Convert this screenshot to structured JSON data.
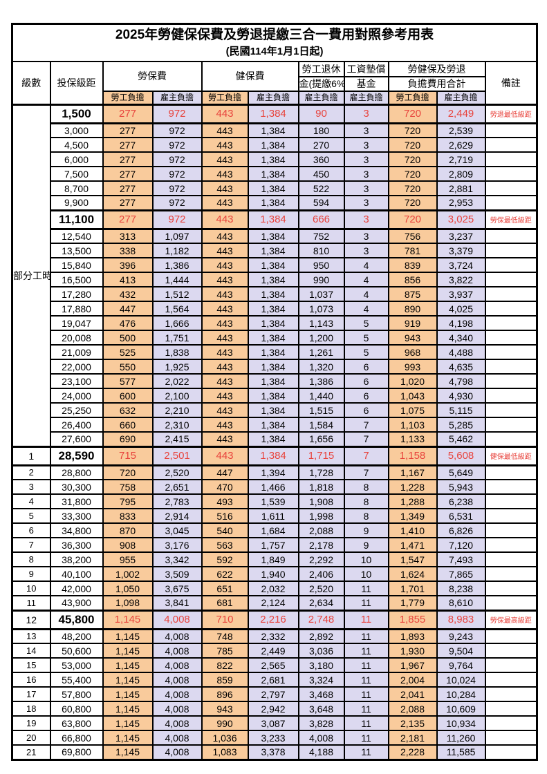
{
  "title": {
    "line1": "2025年勞健保保費及勞退提繳三合一費用對照參考用表",
    "line2": "(民國114年1月1日起)"
  },
  "header": {
    "level": "級數",
    "salary": "投保級距",
    "labor": "勞保費",
    "health": "健保費",
    "pension_l1": "勞工退休",
    "pension_l2": "金(提繳6%)",
    "fund_l1": "工資墊償",
    "fund_l2": "基金",
    "total_l1": "勞健保及勞退",
    "total_l2": "負擔費用合計",
    "remark": "備註",
    "employee": "勞工負擔",
    "employer": "雇主負擔"
  },
  "part_time": {
    "label": "部分工時",
    "row_count": 23
  },
  "colors": {
    "employee_bg": "#f9cb9c",
    "employer_bg": "#dcd9f0",
    "highlight_red": "#e8433c"
  },
  "rows": [
    {
      "level": "",
      "salary": "1,500",
      "labor_emp": "277",
      "labor_er": "972",
      "health_emp": "443",
      "health_er": "1,384",
      "pension": "90",
      "fund": "3",
      "total_emp": "720",
      "total_er": "2,449",
      "remark": "勞退最低級距",
      "highlight": true
    },
    {
      "level": "",
      "salary": "3,000",
      "labor_emp": "277",
      "labor_er": "972",
      "health_emp": "443",
      "health_er": "1,384",
      "pension": "180",
      "fund": "3",
      "total_emp": "720",
      "total_er": "2,539",
      "remark": "",
      "highlight": false
    },
    {
      "level": "",
      "salary": "4,500",
      "labor_emp": "277",
      "labor_er": "972",
      "health_emp": "443",
      "health_er": "1,384",
      "pension": "270",
      "fund": "3",
      "total_emp": "720",
      "total_er": "2,629",
      "remark": "",
      "highlight": false
    },
    {
      "level": "",
      "salary": "6,000",
      "labor_emp": "277",
      "labor_er": "972",
      "health_emp": "443",
      "health_er": "1,384",
      "pension": "360",
      "fund": "3",
      "total_emp": "720",
      "total_er": "2,719",
      "remark": "",
      "highlight": false
    },
    {
      "level": "",
      "salary": "7,500",
      "labor_emp": "277",
      "labor_er": "972",
      "health_emp": "443",
      "health_er": "1,384",
      "pension": "450",
      "fund": "3",
      "total_emp": "720",
      "total_er": "2,809",
      "remark": "",
      "highlight": false
    },
    {
      "level": "",
      "salary": "8,700",
      "labor_emp": "277",
      "labor_er": "972",
      "health_emp": "443",
      "health_er": "1,384",
      "pension": "522",
      "fund": "3",
      "total_emp": "720",
      "total_er": "2,881",
      "remark": "",
      "highlight": false
    },
    {
      "level": "",
      "salary": "9,900",
      "labor_emp": "277",
      "labor_er": "972",
      "health_emp": "443",
      "health_er": "1,384",
      "pension": "594",
      "fund": "3",
      "total_emp": "720",
      "total_er": "2,953",
      "remark": "",
      "highlight": false
    },
    {
      "level": "",
      "salary": "11,100",
      "labor_emp": "277",
      "labor_er": "972",
      "health_emp": "443",
      "health_er": "1,384",
      "pension": "666",
      "fund": "3",
      "total_emp": "720",
      "total_er": "3,025",
      "remark": "勞保最低級距",
      "highlight": true
    },
    {
      "level": "",
      "salary": "12,540",
      "labor_emp": "313",
      "labor_er": "1,097",
      "health_emp": "443",
      "health_er": "1,384",
      "pension": "752",
      "fund": "3",
      "total_emp": "756",
      "total_er": "3,237",
      "remark": "",
      "highlight": false
    },
    {
      "level": "",
      "salary": "13,500",
      "labor_emp": "338",
      "labor_er": "1,182",
      "health_emp": "443",
      "health_er": "1,384",
      "pension": "810",
      "fund": "3",
      "total_emp": "781",
      "total_er": "3,379",
      "remark": "",
      "highlight": false
    },
    {
      "level": "",
      "salary": "15,840",
      "labor_emp": "396",
      "labor_er": "1,386",
      "health_emp": "443",
      "health_er": "1,384",
      "pension": "950",
      "fund": "4",
      "total_emp": "839",
      "total_er": "3,724",
      "remark": "",
      "highlight": false
    },
    {
      "level": "",
      "salary": "16,500",
      "labor_emp": "413",
      "labor_er": "1,444",
      "health_emp": "443",
      "health_er": "1,384",
      "pension": "990",
      "fund": "4",
      "total_emp": "856",
      "total_er": "3,822",
      "remark": "",
      "highlight": false
    },
    {
      "level": "",
      "salary": "17,280",
      "labor_emp": "432",
      "labor_er": "1,512",
      "health_emp": "443",
      "health_er": "1,384",
      "pension": "1,037",
      "fund": "4",
      "total_emp": "875",
      "total_er": "3,937",
      "remark": "",
      "highlight": false
    },
    {
      "level": "",
      "salary": "17,880",
      "labor_emp": "447",
      "labor_er": "1,564",
      "health_emp": "443",
      "health_er": "1,384",
      "pension": "1,073",
      "fund": "4",
      "total_emp": "890",
      "total_er": "4,025",
      "remark": "",
      "highlight": false
    },
    {
      "level": "",
      "salary": "19,047",
      "labor_emp": "476",
      "labor_er": "1,666",
      "health_emp": "443",
      "health_er": "1,384",
      "pension": "1,143",
      "fund": "5",
      "total_emp": "919",
      "total_er": "4,198",
      "remark": "",
      "highlight": false
    },
    {
      "level": "",
      "salary": "20,008",
      "labor_emp": "500",
      "labor_er": "1,751",
      "health_emp": "443",
      "health_er": "1,384",
      "pension": "1,200",
      "fund": "5",
      "total_emp": "943",
      "total_er": "4,340",
      "remark": "",
      "highlight": false
    },
    {
      "level": "",
      "salary": "21,009",
      "labor_emp": "525",
      "labor_er": "1,838",
      "health_emp": "443",
      "health_er": "1,384",
      "pension": "1,261",
      "fund": "5",
      "total_emp": "968",
      "total_er": "4,488",
      "remark": "",
      "highlight": false
    },
    {
      "level": "",
      "salary": "22,000",
      "labor_emp": "550",
      "labor_er": "1,925",
      "health_emp": "443",
      "health_er": "1,384",
      "pension": "1,320",
      "fund": "6",
      "total_emp": "993",
      "total_er": "4,635",
      "remark": "",
      "highlight": false
    },
    {
      "level": "",
      "salary": "23,100",
      "labor_emp": "577",
      "labor_er": "2,022",
      "health_emp": "443",
      "health_er": "1,384",
      "pension": "1,386",
      "fund": "6",
      "total_emp": "1,020",
      "total_er": "4,798",
      "remark": "",
      "highlight": false
    },
    {
      "level": "",
      "salary": "24,000",
      "labor_emp": "600",
      "labor_er": "2,100",
      "health_emp": "443",
      "health_er": "1,384",
      "pension": "1,440",
      "fund": "6",
      "total_emp": "1,043",
      "total_er": "4,930",
      "remark": "",
      "highlight": false
    },
    {
      "level": "",
      "salary": "25,250",
      "labor_emp": "632",
      "labor_er": "2,210",
      "health_emp": "443",
      "health_er": "1,384",
      "pension": "1,515",
      "fund": "6",
      "total_emp": "1,075",
      "total_er": "5,115",
      "remark": "",
      "highlight": false
    },
    {
      "level": "",
      "salary": "26,400",
      "labor_emp": "660",
      "labor_er": "2,310",
      "health_emp": "443",
      "health_er": "1,384",
      "pension": "1,584",
      "fund": "7",
      "total_emp": "1,103",
      "total_er": "5,285",
      "remark": "",
      "highlight": false
    },
    {
      "level": "",
      "salary": "27,600",
      "labor_emp": "690",
      "labor_er": "2,415",
      "health_emp": "443",
      "health_er": "1,384",
      "pension": "1,656",
      "fund": "7",
      "total_emp": "1,133",
      "total_er": "5,462",
      "remark": "",
      "highlight": false
    },
    {
      "level": "1",
      "salary": "28,590",
      "labor_emp": "715",
      "labor_er": "2,501",
      "health_emp": "443",
      "health_er": "1,384",
      "pension": "1,715",
      "fund": "7",
      "total_emp": "1,158",
      "total_er": "5,608",
      "remark": "健保最低級距",
      "highlight": true
    },
    {
      "level": "2",
      "salary": "28,800",
      "labor_emp": "720",
      "labor_er": "2,520",
      "health_emp": "447",
      "health_er": "1,394",
      "pension": "1,728",
      "fund": "7",
      "total_emp": "1,167",
      "total_er": "5,649",
      "remark": "",
      "highlight": false
    },
    {
      "level": "3",
      "salary": "30,300",
      "labor_emp": "758",
      "labor_er": "2,651",
      "health_emp": "470",
      "health_er": "1,466",
      "pension": "1,818",
      "fund": "8",
      "total_emp": "1,228",
      "total_er": "5,943",
      "remark": "",
      "highlight": false
    },
    {
      "level": "4",
      "salary": "31,800",
      "labor_emp": "795",
      "labor_er": "2,783",
      "health_emp": "493",
      "health_er": "1,539",
      "pension": "1,908",
      "fund": "8",
      "total_emp": "1,288",
      "total_er": "6,238",
      "remark": "",
      "highlight": false
    },
    {
      "level": "5",
      "salary": "33,300",
      "labor_emp": "833",
      "labor_er": "2,914",
      "health_emp": "516",
      "health_er": "1,611",
      "pension": "1,998",
      "fund": "8",
      "total_emp": "1,349",
      "total_er": "6,531",
      "remark": "",
      "highlight": false
    },
    {
      "level": "6",
      "salary": "34,800",
      "labor_emp": "870",
      "labor_er": "3,045",
      "health_emp": "540",
      "health_er": "1,684",
      "pension": "2,088",
      "fund": "9",
      "total_emp": "1,410",
      "total_er": "6,826",
      "remark": "",
      "highlight": false
    },
    {
      "level": "7",
      "salary": "36,300",
      "labor_emp": "908",
      "labor_er": "3,176",
      "health_emp": "563",
      "health_er": "1,757",
      "pension": "2,178",
      "fund": "9",
      "total_emp": "1,471",
      "total_er": "7,120",
      "remark": "",
      "highlight": false
    },
    {
      "level": "8",
      "salary": "38,200",
      "labor_emp": "955",
      "labor_er": "3,342",
      "health_emp": "592",
      "health_er": "1,849",
      "pension": "2,292",
      "fund": "10",
      "total_emp": "1,547",
      "total_er": "7,493",
      "remark": "",
      "highlight": false
    },
    {
      "level": "9",
      "salary": "40,100",
      "labor_emp": "1,002",
      "labor_er": "3,509",
      "health_emp": "622",
      "health_er": "1,940",
      "pension": "2,406",
      "fund": "10",
      "total_emp": "1,624",
      "total_er": "7,865",
      "remark": "",
      "highlight": false
    },
    {
      "level": "10",
      "salary": "42,000",
      "labor_emp": "1,050",
      "labor_er": "3,675",
      "health_emp": "651",
      "health_er": "2,032",
      "pension": "2,520",
      "fund": "11",
      "total_emp": "1,701",
      "total_er": "8,238",
      "remark": "",
      "highlight": false
    },
    {
      "level": "11",
      "salary": "43,900",
      "labor_emp": "1,098",
      "labor_er": "3,841",
      "health_emp": "681",
      "health_er": "2,124",
      "pension": "2,634",
      "fund": "11",
      "total_emp": "1,779",
      "total_er": "8,610",
      "remark": "",
      "highlight": false
    },
    {
      "level": "12",
      "salary": "45,800",
      "labor_emp": "1,145",
      "labor_er": "4,008",
      "health_emp": "710",
      "health_er": "2,216",
      "pension": "2,748",
      "fund": "11",
      "total_emp": "1,855",
      "total_er": "8,983",
      "remark": "勞保最高級距",
      "highlight": true
    },
    {
      "level": "13",
      "salary": "48,200",
      "labor_emp": "1,145",
      "labor_er": "4,008",
      "health_emp": "748",
      "health_er": "2,332",
      "pension": "2,892",
      "fund": "11",
      "total_emp": "1,893",
      "total_er": "9,243",
      "remark": "",
      "highlight": false
    },
    {
      "level": "14",
      "salary": "50,600",
      "labor_emp": "1,145",
      "labor_er": "4,008",
      "health_emp": "785",
      "health_er": "2,449",
      "pension": "3,036",
      "fund": "11",
      "total_emp": "1,930",
      "total_er": "9,504",
      "remark": "",
      "highlight": false
    },
    {
      "level": "15",
      "salary": "53,000",
      "labor_emp": "1,145",
      "labor_er": "4,008",
      "health_emp": "822",
      "health_er": "2,565",
      "pension": "3,180",
      "fund": "11",
      "total_emp": "1,967",
      "total_er": "9,764",
      "remark": "",
      "highlight": false
    },
    {
      "level": "16",
      "salary": "55,400",
      "labor_emp": "1,145",
      "labor_er": "4,008",
      "health_emp": "859",
      "health_er": "2,681",
      "pension": "3,324",
      "fund": "11",
      "total_emp": "2,004",
      "total_er": "10,024",
      "remark": "",
      "highlight": false
    },
    {
      "level": "17",
      "salary": "57,800",
      "labor_emp": "1,145",
      "labor_er": "4,008",
      "health_emp": "896",
      "health_er": "2,797",
      "pension": "3,468",
      "fund": "11",
      "total_emp": "2,041",
      "total_er": "10,284",
      "remark": "",
      "highlight": false
    },
    {
      "level": "18",
      "salary": "60,800",
      "labor_emp": "1,145",
      "labor_er": "4,008",
      "health_emp": "943",
      "health_er": "2,942",
      "pension": "3,648",
      "fund": "11",
      "total_emp": "2,088",
      "total_er": "10,609",
      "remark": "",
      "highlight": false
    },
    {
      "level": "19",
      "salary": "63,800",
      "labor_emp": "1,145",
      "labor_er": "4,008",
      "health_emp": "990",
      "health_er": "3,087",
      "pension": "3,828",
      "fund": "11",
      "total_emp": "2,135",
      "total_er": "10,934",
      "remark": "",
      "highlight": false
    },
    {
      "level": "20",
      "salary": "66,800",
      "labor_emp": "1,145",
      "labor_er": "4,008",
      "health_emp": "1,036",
      "health_er": "3,233",
      "pension": "4,008",
      "fund": "11",
      "total_emp": "2,181",
      "total_er": "11,260",
      "remark": "",
      "highlight": false
    },
    {
      "level": "21",
      "salary": "69,800",
      "labor_emp": "1,145",
      "labor_er": "4,008",
      "health_emp": "1,083",
      "health_er": "3,378",
      "pension": "4,188",
      "fund": "11",
      "total_emp": "2,228",
      "total_er": "11,585",
      "remark": "",
      "highlight": false
    }
  ]
}
